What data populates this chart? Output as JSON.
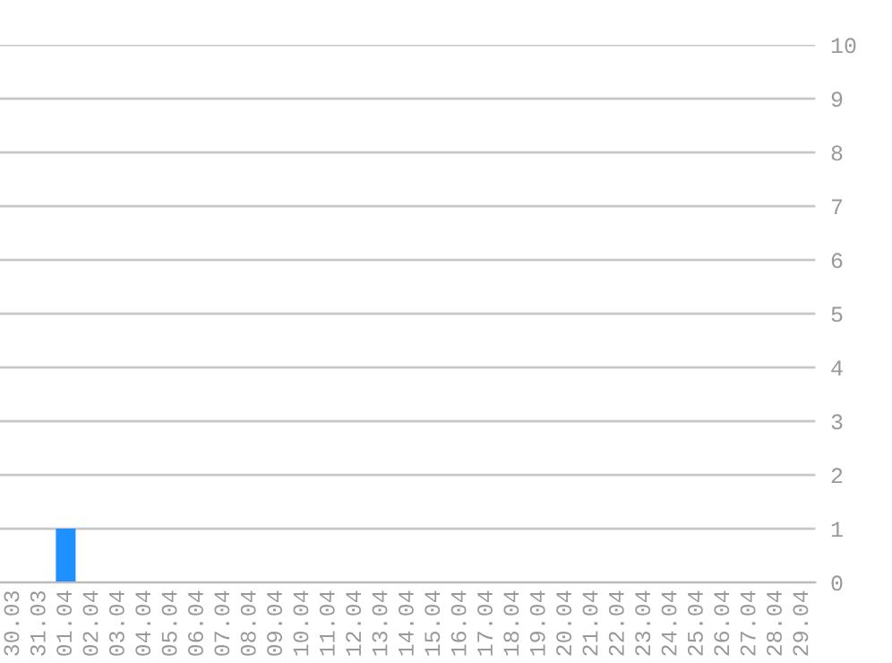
{
  "chart_data": {
    "type": "bar",
    "categories": [
      "30.03",
      "31.03",
      "01.04",
      "02.04",
      "03.04",
      "04.04",
      "05.04",
      "06.04",
      "07.04",
      "08.04",
      "09.04",
      "10.04",
      "11.04",
      "12.04",
      "13.04",
      "14.04",
      "15.04",
      "16.04",
      "17.04",
      "18.04",
      "19.04",
      "20.04",
      "21.04",
      "22.04",
      "23.04",
      "24.04",
      "25.04",
      "26.04",
      "27.04",
      "28.04",
      "29.04"
    ],
    "values": [
      0,
      0,
      1,
      0,
      0,
      0,
      0,
      0,
      0,
      0,
      0,
      0,
      0,
      0,
      0,
      0,
      0,
      0,
      0,
      0,
      0,
      0,
      0,
      0,
      0,
      0,
      0,
      0,
      0,
      0,
      0
    ],
    "color": "#1e90ff",
    "ylim": [
      0,
      10
    ],
    "yticks": [
      0,
      1,
      2,
      3,
      4,
      5,
      6,
      7,
      8,
      9,
      10
    ],
    "grid": "y"
  }
}
